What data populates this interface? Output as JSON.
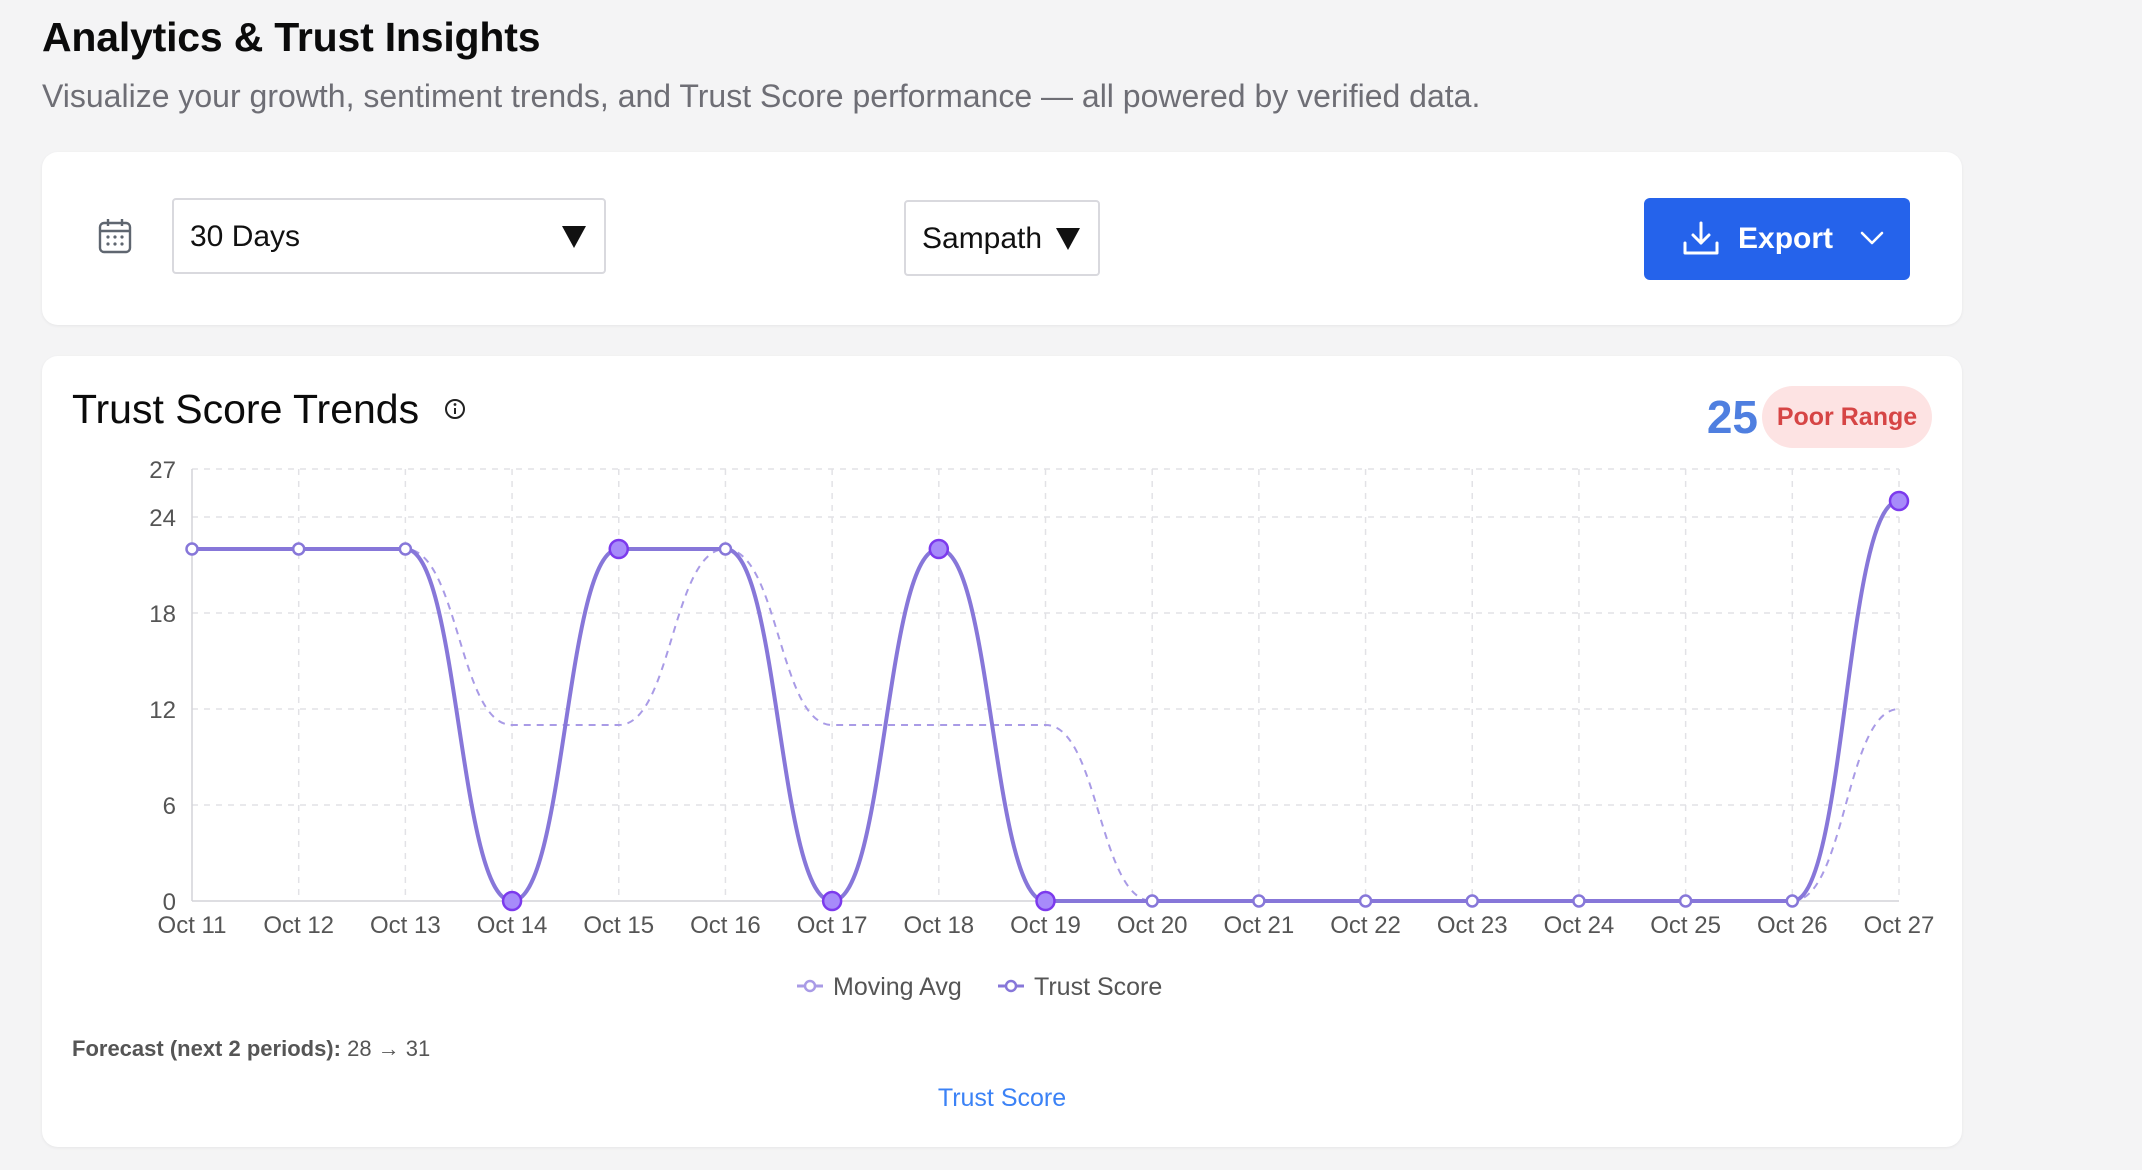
{
  "page": {
    "title": "Analytics & Trust Insights",
    "subtitle": "Visualize your growth, sentiment trends, and Trust Score performance — all powered by verified data."
  },
  "filters": {
    "range": "30 Days",
    "user": "Sampath",
    "export_label": "Export"
  },
  "chart_card": {
    "title": "Trust Score Trends",
    "score": "25",
    "badge": "Poor Range",
    "forecast_label": "Forecast (next 2 periods):",
    "forecast_value": "28 → 31",
    "footer_label": "Trust Score"
  },
  "chart_data": {
    "type": "line",
    "x": [
      "Oct 11",
      "Oct 12",
      "Oct 13",
      "Oct 14",
      "Oct 15",
      "Oct 16",
      "Oct 17",
      "Oct 18",
      "Oct 19",
      "Oct 20",
      "Oct 21",
      "Oct 22",
      "Oct 23",
      "Oct 24",
      "Oct 25",
      "Oct 26",
      "Oct 27"
    ],
    "ylim": [
      0,
      27
    ],
    "yticks": [
      0,
      6,
      12,
      18,
      24,
      27
    ],
    "grid": true,
    "legend": "bottom-center",
    "series": [
      {
        "name": "Moving Avg",
        "style": "dashed",
        "color": "#a99be6",
        "values": [
          22,
          22,
          22,
          11,
          11,
          22,
          11,
          11,
          11,
          0,
          0,
          0,
          0,
          0,
          0,
          0,
          12
        ]
      },
      {
        "name": "Trust Score",
        "style": "solid",
        "color": "#8777d9",
        "values": [
          22,
          22,
          22,
          0,
          22,
          22,
          0,
          22,
          0,
          0,
          0,
          0,
          0,
          0,
          0,
          0,
          25
        ]
      }
    ]
  },
  "colors": {
    "accent": "#2563eb",
    "score": "#4f7fe0",
    "badge_bg": "#fde3e3",
    "badge_text": "#d64545",
    "marker_fill": "#a78bfa",
    "marker_stroke": "#7c3aed"
  }
}
